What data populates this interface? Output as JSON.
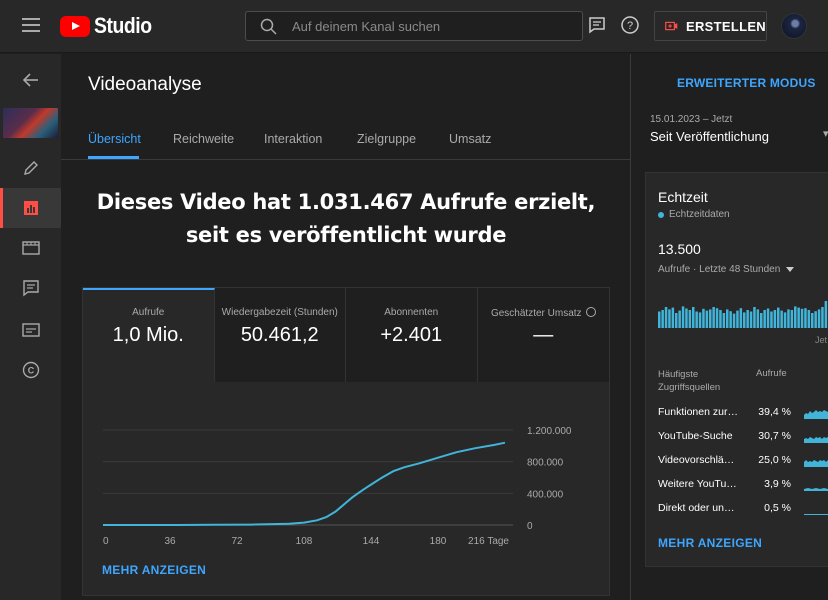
{
  "header": {
    "logo_text": "Studio",
    "search": {
      "placeholder": "Auf deinem Kanal suchen",
      "value": ""
    },
    "create_label": "ERSTELLEN"
  },
  "main": {
    "title": "Videoanalyse",
    "tabs": [
      {
        "label": "Übersicht",
        "active": true
      },
      {
        "label": "Reichweite",
        "active": false
      },
      {
        "label": "Interaktion",
        "active": false
      },
      {
        "label": "Zielgruppe",
        "active": false
      },
      {
        "label": "Umsatz",
        "active": false
      }
    ],
    "caption": [
      "Dieses Video hat 1.031.467 Aufrufe erzielt,",
      "seit es veröffentlicht wurde"
    ],
    "metrics": [
      {
        "label": "Aufrufe",
        "value": "1,0 Mio.",
        "active": true
      },
      {
        "label": "Wiedergabezeit (Stunden)",
        "value": "50.461,2",
        "active": false
      },
      {
        "label": "Abonnenten",
        "value": "+2.401",
        "active": false
      },
      {
        "label": "Geschätzter Umsatz",
        "value": "—",
        "active": false
      }
    ],
    "more_label": "MEHR ANZEIGEN"
  },
  "chart_data": {
    "type": "line",
    "title": "",
    "xlabel": "",
    "ylabel": "",
    "x_ticks": [
      "0",
      "36",
      "72",
      "108",
      "144",
      "180",
      "216 Tage"
    ],
    "y_ticks": [
      "0",
      "400.000",
      "800.000",
      "1.200.000"
    ],
    "xlim": [
      0,
      216
    ],
    "ylim": [
      0,
      1200000
    ],
    "x": [
      0,
      20,
      40,
      60,
      80,
      100,
      108,
      115,
      120,
      125,
      128,
      131,
      134,
      137,
      140,
      144,
      150,
      156,
      162,
      170,
      180,
      190,
      200,
      210,
      216
    ],
    "y": [
      0,
      0,
      0,
      2000,
      5000,
      15000,
      30000,
      60000,
      100000,
      170000,
      230000,
      290000,
      350000,
      400000,
      450000,
      510000,
      600000,
      680000,
      730000,
      780000,
      850000,
      920000,
      970000,
      1010000,
      1040000
    ],
    "color": "#41b4d9",
    "grid": true
  },
  "right": {
    "advanced_label": "ERWEITERTER MODUS",
    "date_range": "15.01.2023 – Jetzt",
    "date_selection": "Seit Veröffentlichung",
    "realtime": {
      "title": "Echtzeit",
      "subtitle": "Echtzeitdaten",
      "count": "13.500",
      "desc": "Aufrufe · Letzte 48 Stunden",
      "axis_label": "Jet",
      "bars": [
        0.55,
        0.6,
        0.7,
        0.62,
        0.68,
        0.5,
        0.58,
        0.72,
        0.65,
        0.6,
        0.7,
        0.55,
        0.52,
        0.64,
        0.58,
        0.62,
        0.7,
        0.66,
        0.6,
        0.5,
        0.62,
        0.56,
        0.48,
        0.58,
        0.66,
        0.52,
        0.6,
        0.55,
        0.7,
        0.62,
        0.5,
        0.6,
        0.65,
        0.55,
        0.6,
        0.68,
        0.58,
        0.52,
        0.62,
        0.6,
        0.72,
        0.68,
        0.64,
        0.66,
        0.6,
        0.5,
        0.56,
        0.62,
        0.7,
        0.9,
        0.58,
        0.6
      ],
      "sources_header": "Häufigste Zugriffsquellen",
      "views_header": "Aufrufe",
      "sources": [
        {
          "name": "Funktionen zur…",
          "pct": "39,4 %"
        },
        {
          "name": "YouTube-Suche",
          "pct": "30,7 %"
        },
        {
          "name": "Videovorschlä…",
          "pct": "25,0 %"
        },
        {
          "name": "Weitere YouTub…",
          "pct": "3,9 %"
        },
        {
          "name": "Direkt oder unb…",
          "pct": "0,5 %"
        }
      ],
      "more_label": "MEHR ANZEIGEN"
    }
  }
}
